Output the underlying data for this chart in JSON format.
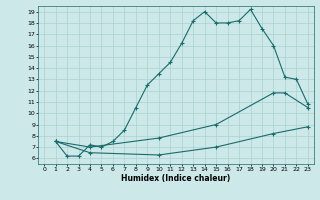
{
  "xlabel": "Humidex (Indice chaleur)",
  "ylabel": "",
  "xlim": [
    -0.5,
    23.5
  ],
  "ylim": [
    5.5,
    19.5
  ],
  "yticks": [
    6,
    7,
    8,
    9,
    10,
    11,
    12,
    13,
    14,
    15,
    16,
    17,
    18,
    19
  ],
  "xticks": [
    0,
    1,
    2,
    3,
    4,
    5,
    6,
    7,
    8,
    9,
    10,
    11,
    12,
    13,
    14,
    15,
    16,
    17,
    18,
    19,
    20,
    21,
    22,
    23
  ],
  "bg_color": "#cce8e8",
  "grid_color": "#aad0d0",
  "line_color": "#1a6b6b",
  "line1_x": [
    1,
    2,
    3,
    4,
    5,
    6,
    7,
    8,
    9,
    10,
    11,
    12,
    13,
    14,
    15,
    16,
    17,
    18,
    19,
    20,
    21,
    22,
    23
  ],
  "line1_y": [
    7.5,
    6.2,
    6.2,
    7.2,
    7.0,
    7.5,
    8.5,
    10.5,
    12.5,
    13.5,
    14.5,
    16.2,
    18.2,
    19.0,
    18.0,
    18.0,
    18.2,
    19.2,
    17.5,
    16.0,
    13.2,
    13.0,
    10.8
  ],
  "line2_x": [
    1,
    4,
    10,
    15,
    20,
    21,
    23
  ],
  "line2_y": [
    7.5,
    7.0,
    7.8,
    9.0,
    11.8,
    11.8,
    10.5
  ],
  "line3_x": [
    1,
    4,
    10,
    15,
    20,
    23
  ],
  "line3_y": [
    7.5,
    6.5,
    6.3,
    7.0,
    8.2,
    8.8
  ]
}
